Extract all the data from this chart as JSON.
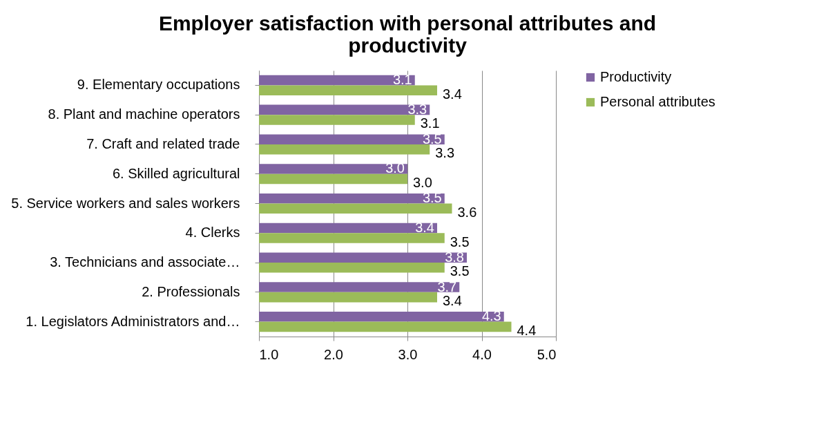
{
  "chart_data": {
    "type": "bar",
    "orientation": "horizontal",
    "title": "Employer satisfaction with personal attributes and productivity",
    "categories": [
      "9.  Elementary occupations",
      "8.  Plant and machine operators",
      "7.  Craft and related trade",
      "6.  Skilled agricultural",
      "5.  Service workers and sales workers",
      "4.  Clerks",
      "3.  Technicians and associate…",
      "2.  Professionals",
      "1.  Legislators Administrators and…"
    ],
    "series": [
      {
        "name": "Productivity",
        "color": "#8064a2",
        "values": [
          3.1,
          3.3,
          3.5,
          3.0,
          3.5,
          3.4,
          3.8,
          3.7,
          4.3
        ],
        "value_labels": [
          "3.1",
          "3.3",
          "3.5",
          "3.0",
          "3.5",
          "3.4",
          "3.8",
          "3.7",
          "4.3"
        ]
      },
      {
        "name": "Personal attributes",
        "color": "#9bbb59",
        "values": [
          3.4,
          3.1,
          3.3,
          3.0,
          3.6,
          3.5,
          3.5,
          3.4,
          4.4
        ],
        "value_labels": [
          "3.4",
          "3.1",
          "3.3",
          "3.0",
          "3.6",
          "3.5",
          "3.5",
          "3.4",
          "4.4"
        ]
      }
    ],
    "xlim": [
      1,
      5
    ],
    "xticks": [
      {
        "value": 1,
        "label": "1.0"
      },
      {
        "value": 2,
        "label": "2.0"
      },
      {
        "value": 3,
        "label": "3.0"
      },
      {
        "value": 4,
        "label": "4.0"
      },
      {
        "value": 5,
        "label": "5.0"
      }
    ],
    "grid": "x",
    "legend": "right"
  }
}
